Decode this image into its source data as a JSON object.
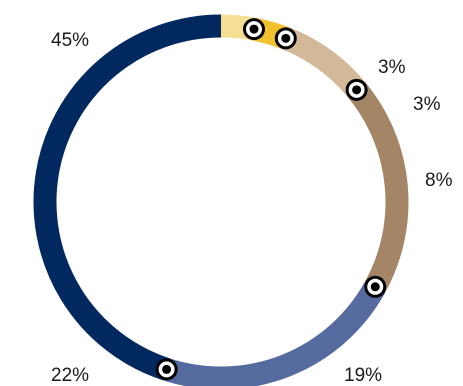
{
  "chart_data": {
    "type": "pie",
    "donut": true,
    "start": "top-center",
    "direction": "clockwise",
    "legend": "none",
    "categories": [
      "",
      "",
      "",
      "",
      "",
      ""
    ],
    "values": [
      3,
      3,
      8,
      19,
      22,
      45
    ],
    "labels": [
      "3%",
      "3%",
      "8%",
      "19%",
      "22%",
      "45%"
    ],
    "colors": [
      "#f6df94",
      "#f2c12e",
      "#d3b899",
      "#a48565",
      "#556a9e",
      "#02295f"
    ],
    "markers": "black ring markers at segment boundaries"
  }
}
